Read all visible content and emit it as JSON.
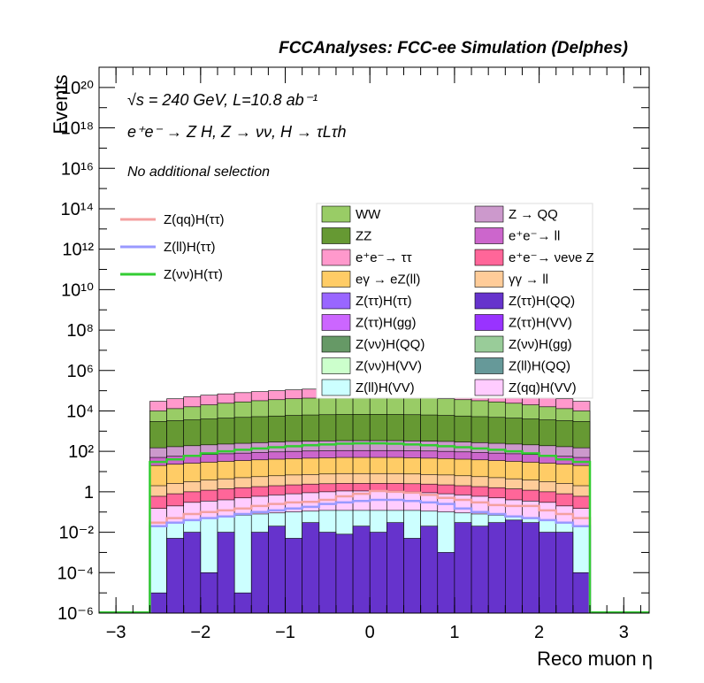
{
  "chart_data": {
    "type": "area",
    "title": "FCCAnalyses: FCC-ee Simulation (Delphes)",
    "xlabel": "Reco muon η",
    "ylabel": "Events",
    "xlim": [
      -3.2,
      3.3
    ],
    "ylim": [
      1e-06,
      1e+21
    ],
    "yscale": "log",
    "x_ticks": [
      "−3",
      "−2",
      "−1",
      "0",
      "1",
      "2",
      "3"
    ],
    "y_ticks": [
      "10⁻⁶",
      "10⁻⁴",
      "10⁻²",
      "1",
      "10²",
      "10⁴",
      "10⁶",
      "10⁸",
      "10¹⁰",
      "10¹²",
      "10¹⁴",
      "10¹⁶",
      "10¹⁸",
      "10²⁰"
    ],
    "annotations": {
      "energy": "√s = 240 GeV, L=10.8 ab⁻¹",
      "process": "e⁺e⁻ → Z H, Z → νν, H → τLτh",
      "selection": "No additional selection"
    },
    "bin_edges": [
      -2.6,
      -2.4,
      -2.2,
      -2.0,
      -1.8,
      -1.6,
      -1.4,
      -1.2,
      -1.0,
      -0.8,
      -0.6,
      -0.4,
      -0.2,
      0.0,
      0.2,
      0.4,
      0.6,
      0.8,
      1.0,
      1.2,
      1.4,
      1.6,
      1.8,
      2.0,
      2.2,
      2.4,
      2.6
    ],
    "stacked_totals": {
      "ee_tautau": [
        30000,
        40000,
        50000,
        60000,
        70000,
        80000,
        90000,
        100000,
        110000,
        120000,
        125000,
        130000,
        130000,
        130000,
        130000,
        125000,
        120000,
        110000,
        100000,
        90000,
        80000,
        70000,
        60000,
        50000,
        40000,
        30000
      ],
      "WW": [
        10000,
        13000,
        16000,
        20000,
        24000,
        28000,
        32000,
        36000,
        40000,
        43000,
        45000,
        47000,
        48000,
        48000,
        47000,
        45000,
        43000,
        40000,
        36000,
        32000,
        28000,
        24000,
        20000,
        16000,
        13000,
        10000
      ],
      "ZZ": [
        3000,
        3300,
        3600,
        4000,
        4400,
        4800,
        5200,
        5600,
        6000,
        6300,
        6500,
        6700,
        6800,
        6800,
        6700,
        6500,
        6300,
        6000,
        5600,
        5200,
        4800,
        4400,
        4000,
        3600,
        3300,
        3000
      ],
      "Z_QQ": [
        150,
        170,
        190,
        210,
        230,
        250,
        270,
        290,
        310,
        320,
        330,
        340,
        340,
        340,
        340,
        330,
        320,
        310,
        290,
        270,
        250,
        230,
        210,
        190,
        170,
        150
      ],
      "ee_ll": [
        50,
        57,
        64,
        70,
        76,
        82,
        88,
        94,
        100,
        104,
        107,
        110,
        110,
        110,
        110,
        107,
        104,
        100,
        94,
        88,
        82,
        76,
        70,
        64,
        57,
        50
      ],
      "egamma_eZ": [
        20,
        23,
        26,
        29,
        32,
        35,
        38,
        41,
        44,
        46,
        48,
        50,
        50,
        50,
        50,
        48,
        46,
        44,
        41,
        38,
        35,
        32,
        29,
        26,
        23,
        20
      ],
      "gammagamma_ll": [
        2,
        2.6,
        3.2,
        3.8,
        4.4,
        5,
        5.6,
        6.2,
        6.8,
        7.2,
        7.6,
        8,
        8,
        8,
        8,
        7.6,
        7.2,
        6.8,
        6.2,
        5.6,
        5,
        4.4,
        3.8,
        3.2,
        2.6,
        2
      ],
      "ee_nunuZ": [
        0.6,
        0.8,
        1,
        1.2,
        1.4,
        1.6,
        1.8,
        2,
        2.2,
        2.4,
        2.5,
        2.6,
        2.6,
        2.6,
        2.6,
        2.5,
        2.4,
        2.2,
        2,
        1.8,
        1.6,
        1.4,
        1.2,
        1,
        0.8,
        0.6
      ],
      "Zqq_HVV": [
        0.15,
        0.2,
        0.3,
        0.35,
        0.4,
        0.5,
        0.6,
        0.7,
        0.8,
        0.9,
        1,
        1.1,
        1.1,
        1.1,
        1.1,
        1,
        0.9,
        0.8,
        0.7,
        0.6,
        0.5,
        0.4,
        0.35,
        0.3,
        0.2,
        0.15
      ],
      "Zll_HVV": [
        0.02,
        0.03,
        0.04,
        0.05,
        0.06,
        0.07,
        0.08,
        0.09,
        0.1,
        0.11,
        0.12,
        0.12,
        0.12,
        0.12,
        0.12,
        0.12,
        0.11,
        0.1,
        0.09,
        0.08,
        0.07,
        0.06,
        0.05,
        0.04,
        0.03,
        0.02
      ],
      "Ztautau_HQQ": [
        1e-05,
        0.005,
        0.01,
        0.0001,
        0.01,
        1e-05,
        0.01,
        0.02,
        0.005,
        0.03,
        0.01,
        0.008,
        0.02,
        0.01,
        0.03,
        0.005,
        0.02,
        0.001,
        0.03,
        0.02,
        0.03,
        0.04,
        0.03,
        0.01,
        0.01,
        0.0001
      ]
    },
    "line_series": {
      "Zqq_Htautau": [
        0.03,
        0.05,
        0.08,
        0.1,
        0.12,
        0.15,
        0.2,
        0.25,
        0.3,
        0.32,
        0.4,
        0.6,
        0.8,
        1.1,
        1.0,
        0.9,
        0.7,
        0.5,
        0.4,
        0.3,
        0.22,
        0.2,
        0.2,
        0.12,
        0.08,
        0.05
      ],
      "Zll_Htautau": [
        0.02,
        0.03,
        0.04,
        0.05,
        0.06,
        0.08,
        0.1,
        0.12,
        0.15,
        0.18,
        0.25,
        0.3,
        0.35,
        0.4,
        0.4,
        0.35,
        0.3,
        0.25,
        0.15,
        0.1,
        0.08,
        0.06,
        0.05,
        0.04,
        0.03,
        0.02
      ],
      "Znunu_Htautau": [
        30,
        40,
        60,
        80,
        100,
        120,
        140,
        160,
        180,
        200,
        220,
        240,
        250,
        250,
        240,
        220,
        200,
        180,
        160,
        140,
        120,
        100,
        80,
        60,
        40,
        30
      ]
    },
    "legend_lines": [
      {
        "label": "Z(qq)H(ττ)",
        "color": "#f4a0a0"
      },
      {
        "label": "Z(ll)H(ττ)",
        "color": "#9999ff"
      },
      {
        "label": "Z(νν)H(ττ)",
        "color": "#33cc33"
      }
    ],
    "legend_fills": [
      {
        "label": "WW",
        "color": "#99cc66"
      },
      {
        "label": "Z → QQ",
        "color": "#cc99cc"
      },
      {
        "label": "ZZ",
        "color": "#669933"
      },
      {
        "label": "e⁺e⁻→ ll",
        "color": "#cc66cc"
      },
      {
        "label": "e⁺e⁻→ ττ",
        "color": "#ff99cc"
      },
      {
        "label": "e⁺e⁻→ νeνe Z",
        "color": "#ff6699"
      },
      {
        "label": "eγ → eZ(ll)",
        "color": "#ffcc66"
      },
      {
        "label": "γγ → ll",
        "color": "#ffcc99"
      },
      {
        "label": "Z(ττ)H(ττ)",
        "color": "#9966ff"
      },
      {
        "label": "Z(ττ)H(QQ)",
        "color": "#6633cc"
      },
      {
        "label": "Z(ττ)H(gg)",
        "color": "#cc66ff"
      },
      {
        "label": "Z(ττ)H(VV)",
        "color": "#9933ff"
      },
      {
        "label": "Z(νν)H(QQ)",
        "color": "#669966"
      },
      {
        "label": "Z(νν)H(gg)",
        "color": "#99cc99"
      },
      {
        "label": "Z(νν)H(VV)",
        "color": "#ccffcc"
      },
      {
        "label": "Z(ll)H(QQ)",
        "color": "#669999"
      },
      {
        "label": "Z(ll)H(VV)",
        "color": "#ccffff"
      },
      {
        "label": "Z(qq)H(VV)",
        "color": "#ffccff"
      }
    ]
  }
}
